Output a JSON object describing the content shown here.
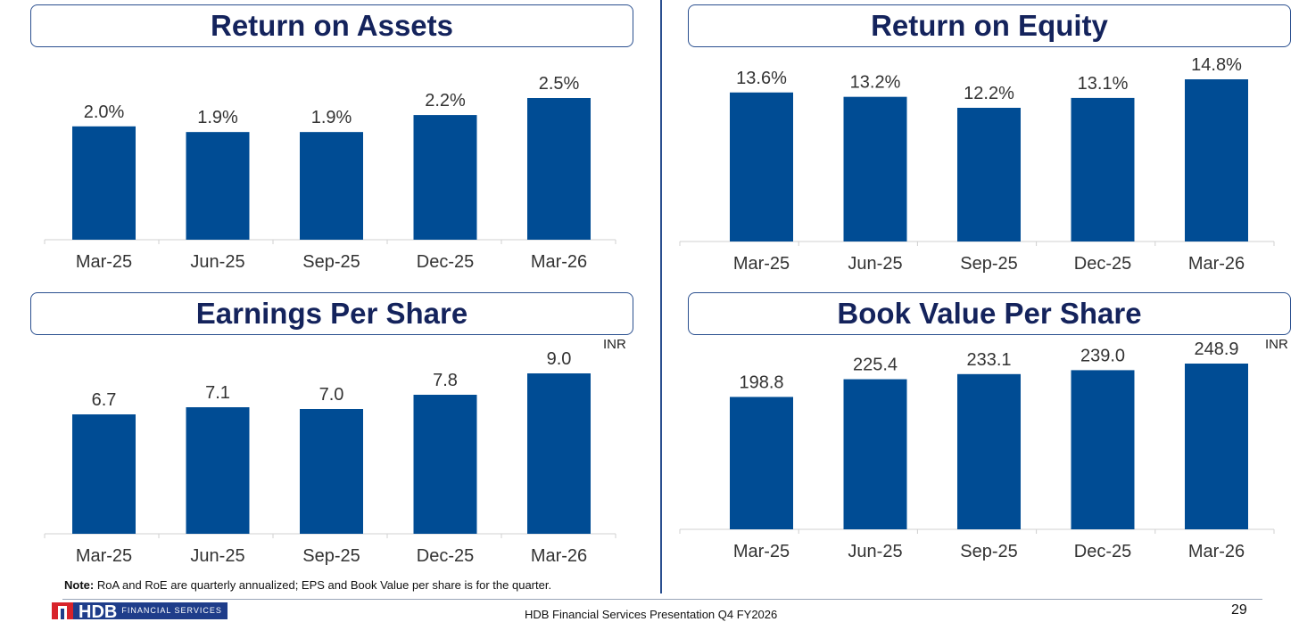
{
  "colors": {
    "bar": "#004c94",
    "axis": "#d0d0d0",
    "title_text": "#14235c",
    "title_border": "#2a4f8f"
  },
  "chart_data": [
    {
      "type": "bar",
      "title": "Return on Assets",
      "categories": [
        "Mar-25",
        "Jun-25",
        "Sep-25",
        "Dec-25",
        "Mar-26"
      ],
      "values": [
        2.0,
        1.9,
        1.9,
        2.2,
        2.5
      ],
      "labels": [
        "2.0%",
        "1.9%",
        "1.9%",
        "2.2%",
        "2.5%"
      ],
      "unit": "",
      "ylim": [
        0,
        2.5
      ]
    },
    {
      "type": "bar",
      "title": "Return on Equity",
      "categories": [
        "Mar-25",
        "Jun-25",
        "Sep-25",
        "Dec-25",
        "Mar-26"
      ],
      "values": [
        13.6,
        13.2,
        12.2,
        13.1,
        14.8
      ],
      "labels": [
        "13.6%",
        "13.2%",
        "12.2%",
        "13.1%",
        "14.8%"
      ],
      "unit": "",
      "ylim": [
        0,
        14.8
      ]
    },
    {
      "type": "bar",
      "title": "Earnings Per Share",
      "categories": [
        "Mar-25",
        "Jun-25",
        "Sep-25",
        "Dec-25",
        "Mar-26"
      ],
      "values": [
        6.7,
        7.1,
        7.0,
        7.8,
        9.0
      ],
      "labels": [
        "6.7",
        "7.1",
        "7.0",
        "7.8",
        "9.0"
      ],
      "unit": "INR",
      "ylim": [
        0,
        9.0
      ]
    },
    {
      "type": "bar",
      "title": "Book Value Per Share",
      "categories": [
        "Mar-25",
        "Jun-25",
        "Sep-25",
        "Dec-25",
        "Mar-26"
      ],
      "values": [
        198.8,
        225.4,
        233.1,
        239.0,
        248.9
      ],
      "labels": [
        "198.8",
        "225.4",
        "233.1",
        "239.0",
        "248.9"
      ],
      "unit": "INR",
      "ylim": [
        0,
        248.9
      ]
    }
  ],
  "note": {
    "label": "Note:",
    "text": " RoA and RoE are quarterly annualized; EPS and Book Value per share is for the quarter."
  },
  "footer": {
    "logo_main": "HDB",
    "logo_sub": "FINANCIAL SERVICES",
    "presentation": "HDB Financial Services Presentation Q4 FY2026",
    "page_number": "29"
  }
}
